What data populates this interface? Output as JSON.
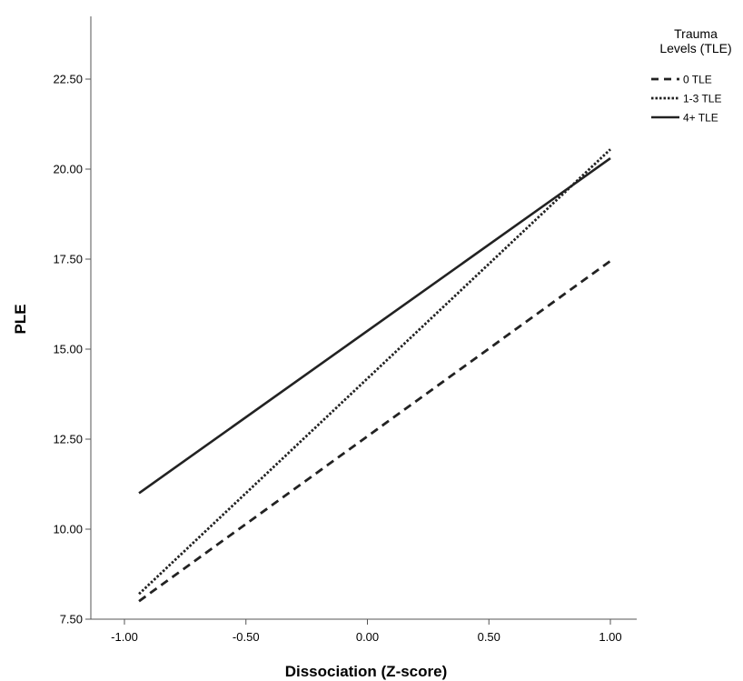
{
  "chart_data": {
    "type": "line",
    "xlabel": "Dissociation (Z-score)",
    "ylabel": "PLE",
    "xlim": [
      -1.1,
      1.1
    ],
    "ylim": [
      7.5,
      24.0
    ],
    "x_ticks": [
      -1.0,
      -0.5,
      0.0,
      0.5,
      1.0
    ],
    "x_tick_labels": [
      "-1.00",
      "-0.50",
      "0.00",
      "0.50",
      "1.00"
    ],
    "y_ticks": [
      7.5,
      10.0,
      12.5,
      15.0,
      17.5,
      20.0,
      22.5
    ],
    "y_tick_labels": [
      "7.50",
      "10.00",
      "12.50",
      "15.00",
      "17.50",
      "20.00",
      "22.50"
    ],
    "grid": false,
    "legend": {
      "title_lines": [
        "Trauma",
        "Levels (TLE)"
      ],
      "placement": "top-right"
    },
    "series": [
      {
        "name": "0 TLE",
        "style": "dashed",
        "x": [
          -0.94,
          1.0
        ],
        "y": [
          8.0,
          17.45
        ]
      },
      {
        "name": "1-3 TLE",
        "style": "dotted",
        "x": [
          -0.94,
          1.0
        ],
        "y": [
          8.2,
          20.55
        ]
      },
      {
        "name": "4+ TLE",
        "style": "solid",
        "x": [
          -0.94,
          1.0
        ],
        "y": [
          11.0,
          20.3
        ]
      }
    ],
    "colors": {
      "line": "#222222",
      "axis": "#555555"
    }
  }
}
